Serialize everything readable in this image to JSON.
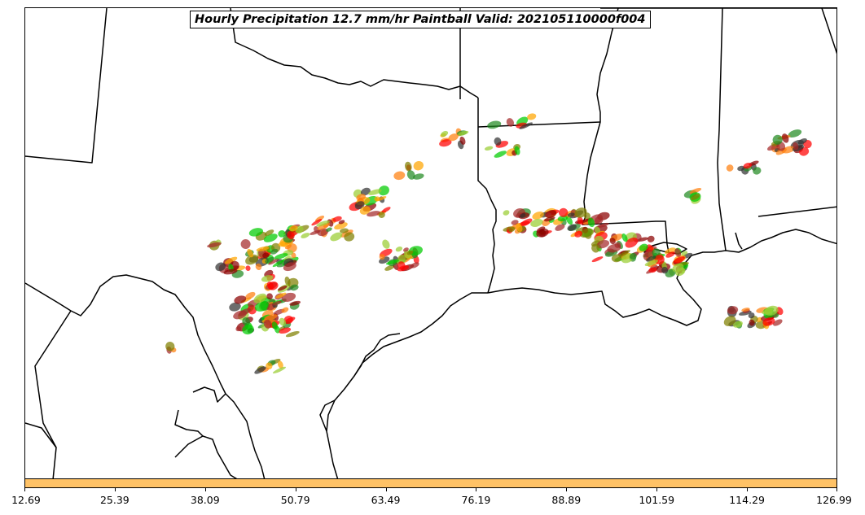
{
  "title": "Hourly Precipitation 12.7 mm/hr Paintball Valid: 202105110000f004",
  "colorbar": {
    "color": "#ffc266",
    "tick_labels": [
      "12.69",
      "25.39",
      "38.09",
      "50.79",
      "63.49",
      "76.19",
      "88.89",
      "101.59",
      "114.29",
      "126.99"
    ]
  },
  "member_colors": [
    "#ff0000",
    "#ff7f0e",
    "#ffa500",
    "#8b0000",
    "#00cc00",
    "#228b22",
    "#9acd32",
    "#808000",
    "#a52a2a",
    "#333333"
  ],
  "map": {
    "border_color": "#000000"
  }
}
